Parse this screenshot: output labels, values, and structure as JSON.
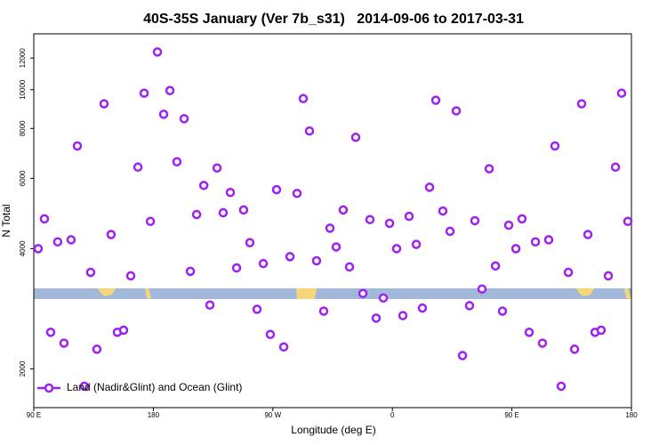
{
  "chart_data": {
    "type": "scatter",
    "title": "40S-35S January (Ver 7b_s31)   2014-09-06 to 2017-03-31",
    "x_label": "Longitude (deg E)",
    "y_label": "N Total",
    "xlim": [
      90,
      540
    ],
    "ylim": [
      1600,
      13800
    ],
    "y_log": true,
    "xticks": [
      {
        "value": 90,
        "label": "90 E"
      },
      {
        "value": 180,
        "label": "180"
      },
      {
        "value": 270,
        "label": "90 W"
      },
      {
        "value": 360,
        "label": "0"
      },
      {
        "value": 450,
        "label": "90 E"
      },
      {
        "value": 540,
        "label": "180"
      }
    ],
    "yticks": [
      2000,
      4000,
      6000,
      8000,
      10000,
      12000
    ],
    "legend": "lower left",
    "series": [
      {
        "name": "Land (Nadir&Glint) and Ocean (Glint)",
        "color": "#a020f0",
        "x": [
          93.3,
          98.0,
          102.7,
          108.0,
          112.7,
          118.1,
          122.8,
          128.1,
          132.8,
          137.5,
          142.9,
          148.2,
          152.9,
          157.6,
          163.0,
          168.4,
          173.1,
          177.8,
          183.1,
          187.8,
          192.5,
          197.8,
          203.2,
          207.9,
          212.6,
          218.0,
          222.6,
          228.0,
          232.6,
          238.0,
          242.7,
          248.0,
          252.7,
          258.1,
          262.8,
          268.1,
          272.8,
          278.2,
          282.9,
          288.2,
          292.9,
          297.6,
          302.9,
          308.3,
          313.0,
          317.7,
          323.0,
          327.7,
          332.4,
          337.8,
          343.1,
          347.8,
          353.2,
          357.9,
          363.2,
          367.9,
          372.6,
          378.0,
          382.6,
          388.0,
          392.7,
          398.0,
          403.4,
          408.1,
          412.8,
          418.1,
          422.1,
          427.5,
          432.9,
          437.6,
          442.9,
          447.6,
          453.0,
          457.6,
          463.0,
          467.7,
          473.0,
          477.7,
          482.4,
          487.1,
          492.5,
          497.2,
          502.5,
          507.2,
          512.6,
          517.2,
          522.6,
          528.0,
          532.6,
          537.3
        ],
        "values": [
          4000,
          4750,
          2470,
          4160,
          2320,
          4210,
          7230,
          1810,
          3490,
          2240,
          9220,
          4340,
          2470,
          2500,
          3420,
          6400,
          9800,
          4680,
          12430,
          8680,
          9950,
          6600,
          8460,
          3510,
          4870,
          5760,
          2890,
          6370,
          4920,
          5530,
          3580,
          5000,
          4140,
          2820,
          3670,
          2440,
          5620,
          2270,
          3820,
          5500,
          9500,
          7880,
          3730,
          2790,
          4500,
          4040,
          5000,
          3600,
          7600,
          3090,
          4730,
          2680,
          3010,
          4630,
          4000,
          2720,
          4820,
          4100,
          2840,
          5700,
          9410,
          4970,
          4420,
          8850,
          2160,
          2880,
          4700,
          3170,
          6340,
          3620,
          2790,
          4580,
          4000,
          4750,
          2470,
          4160,
          2320,
          4210,
          7230,
          1810,
          3490,
          2240,
          9220,
          4340,
          2470,
          2500,
          3420,
          6400,
          9800,
          4680
        ]
      }
    ]
  }
}
